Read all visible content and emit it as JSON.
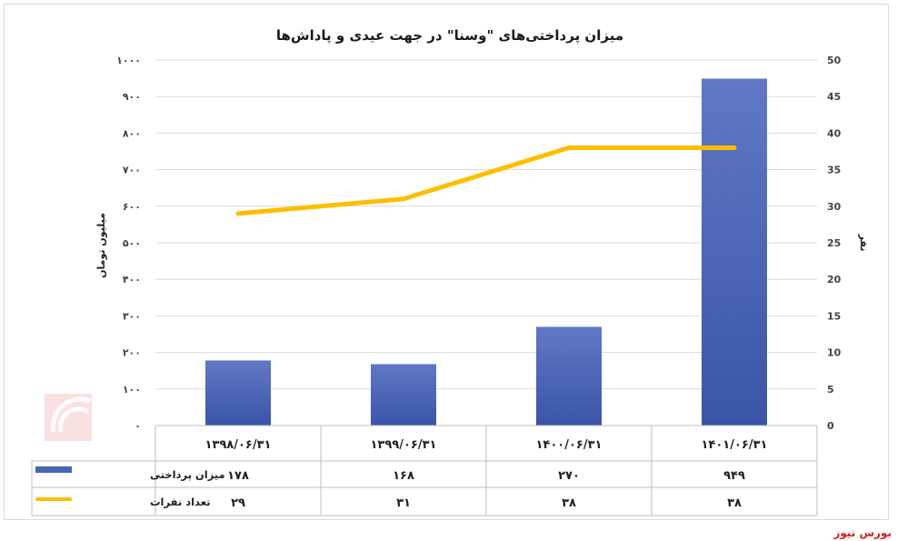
{
  "chart_data": {
    "type": "bar+line",
    "title": "میزان پرداختی‌های \"وسنا\" در جهت عیدی و پاداش‌ها",
    "categories": [
      "۱۳۹۸/۰۶/۳۱",
      "۱۳۹۹/۰۶/۳۱",
      "۱۴۰۰/۰۶/۳۱",
      "۱۴۰۱/۰۶/۳۱"
    ],
    "series": [
      {
        "name": "میزان پرداختی",
        "type": "bar",
        "axis": "left",
        "color": "#4a65b3",
        "values": [
          178,
          168,
          270,
          949
        ],
        "labels": [
          "۱۷۸",
          "۱۶۸",
          "۲۷۰",
          "۹۴۹"
        ]
      },
      {
        "name": "تعداد نفرات",
        "type": "line",
        "axis": "right",
        "color": "#fcbf00",
        "values": [
          29,
          31,
          38,
          38
        ],
        "labels": [
          "۲۹",
          "۳۱",
          "۳۸",
          "۳۸"
        ]
      }
    ],
    "ylabel": "میلیون تومان",
    "y2label": "نفر",
    "ylim": [
      0,
      1000
    ],
    "y2lim": [
      0,
      50
    ],
    "yticks": [
      "۰",
      "۱۰۰",
      "۲۰۰",
      "۳۰۰",
      "۴۰۰",
      "۵۰۰",
      "۶۰۰",
      "۷۰۰",
      "۸۰۰",
      "۹۰۰",
      "۱۰۰۰"
    ],
    "y2ticks": [
      "0",
      "5",
      "10",
      "15",
      "20",
      "25",
      "30",
      "35",
      "40",
      "45",
      "50"
    ],
    "grid": true,
    "legend": "data-table"
  },
  "source": "بورس نیوز"
}
